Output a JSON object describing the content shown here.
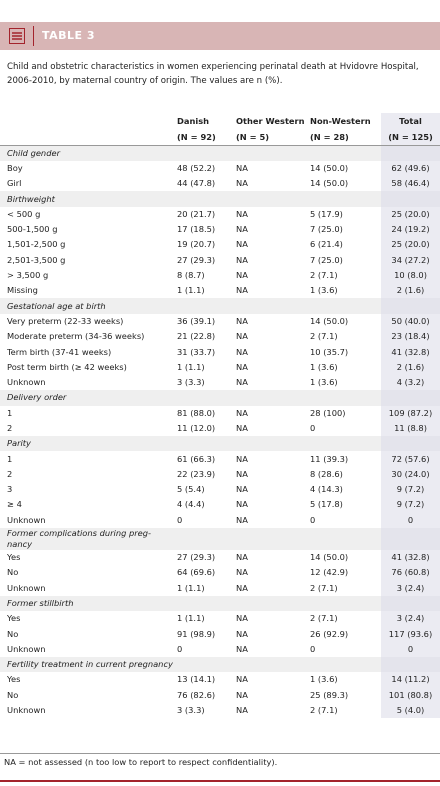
{
  "header": {
    "title": "TABLE 3"
  },
  "caption": "Child and obstetric characteristics in women experiencing perinatal death at Hvidovre Hospital, 2006-2010, by maternal country of origin. The values are n (%).",
  "table": {
    "columns": [
      {
        "name": "Danish",
        "n": "(N = 92)"
      },
      {
        "name": "Other Western",
        "n": "(N = 5)"
      },
      {
        "name": "Non-Western",
        "n": "(N = 28)"
      },
      {
        "name": "Total",
        "n": "(N = 125)"
      }
    ],
    "sections": [
      {
        "title": "Child gender",
        "rows": [
          {
            "label": "Boy",
            "cells": [
              "48 (52.2)",
              "NA",
              "14 (50.0)",
              "62 (49.6)"
            ]
          },
          {
            "label": "Girl",
            "cells": [
              "44 (47.8)",
              "NA",
              "14 (50.0)",
              "58 (46.4)"
            ]
          }
        ]
      },
      {
        "title": "Birthweight",
        "rows": [
          {
            "label": "< 500 g",
            "cells": [
              "20 (21.7)",
              "NA",
              "5 (17.9)",
              "25 (20.0)"
            ]
          },
          {
            "label": "500-1,500 g",
            "cells": [
              "17 (18.5)",
              "NA",
              "7 (25.0)",
              "24 (19.2)"
            ]
          },
          {
            "label": "1,501-2,500 g",
            "cells": [
              "19 (20.7)",
              "NA",
              "6 (21.4)",
              "25 (20.0)"
            ]
          },
          {
            "label": "2,501-3,500 g",
            "cells": [
              "27 (29.3)",
              "NA",
              "7 (25.0)",
              "34 (27.2)"
            ]
          },
          {
            "label": "> 3,500 g",
            "cells": [
              "8 (8.7)",
              "NA",
              "2 (7.1)",
              "10 (8.0)"
            ]
          },
          {
            "label": "Missing",
            "cells": [
              "1 (1.1)",
              "NA",
              "1 (3.6)",
              "2 (1.6)"
            ]
          }
        ]
      },
      {
        "title": "Gestational age at birth",
        "rows": [
          {
            "label": "Very preterm (22-33 weeks)",
            "cells": [
              "36 (39.1)",
              "NA",
              "14 (50.0)",
              "50 (40.0)"
            ]
          },
          {
            "label": "Moderate preterm (34-36 weeks)",
            "cells": [
              "21 (22.8)",
              "NA",
              "2 (7.1)",
              "23 (18.4)"
            ]
          },
          {
            "label": "Term birth (37-41 weeks)",
            "cells": [
              "31 (33.7)",
              "NA",
              "10 (35.7)",
              "41 (32.8)"
            ]
          },
          {
            "label": "Post term birth (≥ 42 weeks)",
            "cells": [
              "1 (1.1)",
              "NA",
              "1 (3.6)",
              "2 (1.6)"
            ]
          },
          {
            "label": "Unknown",
            "cells": [
              "3 (3.3)",
              "NA",
              "1 (3.6)",
              "4 (3.2)"
            ]
          }
        ]
      },
      {
        "title": "Delivery order",
        "rows": [
          {
            "label": "1",
            "cells": [
              "81 (88.0)",
              "NA",
              "28 (100)",
              "109 (87.2)"
            ]
          },
          {
            "label": "2",
            "cells": [
              "11 (12.0)",
              "NA",
              "0",
              "11 (8.8)"
            ]
          }
        ]
      },
      {
        "title": "Parity",
        "rows": [
          {
            "label": "1",
            "cells": [
              "61 (66.3)",
              "NA",
              "11 (39.3)",
              "72 (57.6)"
            ]
          },
          {
            "label": "2",
            "cells": [
              "22 (23.9)",
              "NA",
              "8 (28.6)",
              "30 (24.0)"
            ]
          },
          {
            "label": "3",
            "cells": [
              "5 (5.4)",
              "NA",
              "4 (14.3)",
              "9 (7.2)"
            ]
          },
          {
            "label": "≥ 4",
            "cells": [
              "4 (4.4)",
              "NA",
              "5 (17.8)",
              "9 (7.2)"
            ]
          },
          {
            "label": "Unknown",
            "cells": [
              "0",
              "NA",
              "0",
              "0"
            ]
          }
        ]
      },
      {
        "title": "Former complications during preg-nancy",
        "rows": [
          {
            "label": "Yes",
            "cells": [
              "27 (29.3)",
              "NA",
              "14 (50.0)",
              "41 (32.8)"
            ]
          },
          {
            "label": "No",
            "cells": [
              "64 (69.6)",
              "NA",
              "12 (42.9)",
              "76 (60.8)"
            ]
          },
          {
            "label": "Unknown",
            "cells": [
              "1 (1.1)",
              "NA",
              "2 (7.1)",
              "3 (2.4)"
            ]
          }
        ]
      },
      {
        "title": "Former stillbirth",
        "rows": [
          {
            "label": "Yes",
            "cells": [
              "1 (1.1)",
              "NA",
              "2 (7.1)",
              "3 (2.4)"
            ]
          },
          {
            "label": "No",
            "cells": [
              "91 (98.9)",
              "NA",
              "26 (92.9)",
              "117 (93.6)"
            ]
          },
          {
            "label": "Unknown",
            "cells": [
              "0",
              "NA",
              "0",
              "0"
            ]
          }
        ]
      },
      {
        "title": "Fertility treatment in current pregnancy",
        "rows": [
          {
            "label": "Yes",
            "cells": [
              "13 (14.1)",
              "NA",
              "1 (3.6)",
              "14 (11.2)"
            ]
          },
          {
            "label": "No",
            "cells": [
              "76 (82.6)",
              "NA",
              "25 (89.3)",
              "101 (80.8)"
            ]
          },
          {
            "label": "Unknown",
            "cells": [
              "3 (3.3)",
              "NA",
              "2 (7.1)",
              "5 (4.0)"
            ]
          }
        ]
      }
    ]
  },
  "footnote": "NA = not assessed (n too low to report to respect confidentiality)."
}
